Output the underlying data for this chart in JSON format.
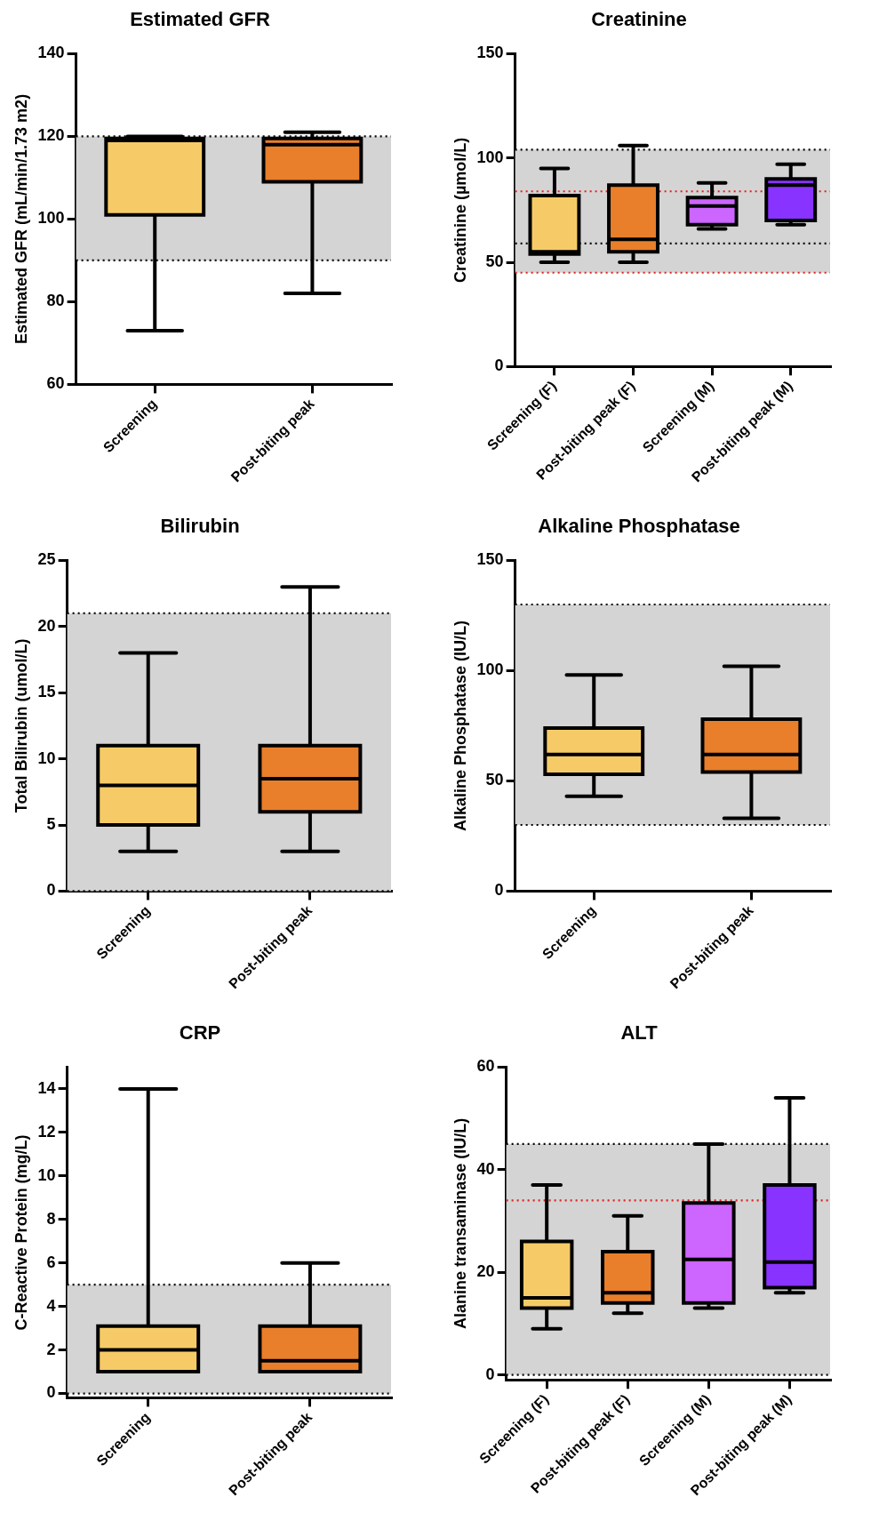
{
  "chart_data": [
    {
      "type": "box",
      "title": "Estimated GFR",
      "ylabel": "Estimated GFR (mL/min/1.73 m2)",
      "categories": [
        "Screening",
        "Post-biting peak"
      ],
      "colors": [
        "#f6cb67",
        "#e97f2a"
      ],
      "ylim": [
        60,
        140
      ],
      "yticks": [
        60,
        80,
        100,
        120,
        140
      ],
      "grid": false,
      "legend": false,
      "boxes": [
        {
          "low": 73,
          "q1": 101,
          "median": 119,
          "q3": 119.5,
          "high": 120
        },
        {
          "low": 82,
          "q1": 109,
          "median": 118,
          "q3": 119.5,
          "high": 121
        }
      ],
      "bands": [
        {
          "axis": "y",
          "from": 90,
          "to": 120,
          "color": "#d4d4d4"
        }
      ],
      "ref_lines": [
        {
          "axis": "y",
          "value": 120,
          "color": "#000000",
          "line_style": "dotted"
        },
        {
          "axis": "y",
          "value": 90,
          "color": "#000000",
          "line_style": "dotted"
        }
      ]
    },
    {
      "type": "box",
      "title": "Creatinine",
      "ylabel": "Creatinine (µmol/L)",
      "categories": [
        "Screening (F)",
        "Post-biting peak (F)",
        "Screening (M)",
        "Post-biting peak (M)"
      ],
      "colors": [
        "#f6cb67",
        "#e97f2a",
        "#cc66ff",
        "#8833ff"
      ],
      "ylim": [
        0,
        150
      ],
      "yticks": [
        0,
        50,
        100,
        150
      ],
      "grid": false,
      "legend": false,
      "boxes": [
        {
          "low": 50,
          "q1": 54,
          "median": 55,
          "q3": 82,
          "high": 95
        },
        {
          "low": 50,
          "q1": 55,
          "median": 61,
          "q3": 87,
          "high": 106
        },
        {
          "low": 66,
          "q1": 68,
          "median": 77,
          "q3": 81,
          "high": 88
        },
        {
          "low": 68,
          "q1": 70,
          "median": 87,
          "q3": 90,
          "high": 97
        }
      ],
      "bands": [
        {
          "axis": "y",
          "from": 45,
          "to": 104,
          "color": "#d4d4d4"
        }
      ],
      "ref_lines": [
        {
          "axis": "y",
          "value": 104,
          "color": "#000000",
          "line_style": "dotted"
        },
        {
          "axis": "y",
          "value": 59,
          "color": "#000000",
          "line_style": "dotted"
        },
        {
          "axis": "y",
          "value": 84,
          "color": "#e0201f",
          "line_style": "dotted"
        },
        {
          "axis": "y",
          "value": 45,
          "color": "#e0201f",
          "line_style": "dotted"
        }
      ]
    },
    {
      "type": "box",
      "title": "Bilirubin",
      "ylabel": "Total Bilirubin (umol/L)",
      "categories": [
        "Screening",
        "Post-biting peak"
      ],
      "colors": [
        "#f6cb67",
        "#e97f2a"
      ],
      "ylim": [
        0,
        25
      ],
      "yticks": [
        0,
        5,
        10,
        15,
        20,
        25
      ],
      "grid": false,
      "legend": false,
      "boxes": [
        {
          "low": 3,
          "q1": 5,
          "median": 8,
          "q3": 11,
          "high": 18
        },
        {
          "low": 3,
          "q1": 6,
          "median": 8.5,
          "q3": 11,
          "high": 23
        }
      ],
      "bands": [
        {
          "axis": "y",
          "from": 0,
          "to": 21,
          "color": "#d4d4d4"
        }
      ],
      "ref_lines": [
        {
          "axis": "y",
          "value": 21,
          "color": "#000000",
          "line_style": "dotted"
        },
        {
          "axis": "y",
          "value": 0,
          "color": "#000000",
          "line_style": "dotted"
        }
      ]
    },
    {
      "type": "box",
      "title": "Alkaline Phosphatase",
      "ylabel": "Alkaline Phosphatase (IU/L)",
      "categories": [
        "Screening",
        "Post-biting peak"
      ],
      "colors": [
        "#f6cb67",
        "#e97f2a"
      ],
      "ylim": [
        0,
        150
      ],
      "yticks": [
        0,
        50,
        100,
        150
      ],
      "grid": false,
      "legend": false,
      "boxes": [
        {
          "low": 43,
          "q1": 53,
          "median": 62,
          "q3": 74,
          "high": 98
        },
        {
          "low": 33,
          "q1": 54,
          "median": 62,
          "q3": 78,
          "high": 102
        }
      ],
      "bands": [
        {
          "axis": "y",
          "from": 30,
          "to": 130,
          "color": "#d4d4d4"
        }
      ],
      "ref_lines": [
        {
          "axis": "y",
          "value": 130,
          "color": "#000000",
          "line_style": "dotted"
        },
        {
          "axis": "y",
          "value": 30,
          "color": "#000000",
          "line_style": "dotted"
        }
      ]
    },
    {
      "type": "box",
      "title": "CRP",
      "ylabel": "C-Reactive Protein (mg/L)",
      "categories": [
        "Screening",
        "Post-biting peak"
      ],
      "colors": [
        "#f6cb67",
        "#e97f2a"
      ],
      "ylim": [
        -0.2,
        15
      ],
      "yticks": [
        0,
        2,
        4,
        6,
        8,
        10,
        12,
        14
      ],
      "grid": false,
      "legend": false,
      "boxes": [
        {
          "low": 1,
          "q1": 1,
          "median": 2,
          "q3": 3.1,
          "high": 14
        },
        {
          "low": 1,
          "q1": 1,
          "median": 1.5,
          "q3": 3.1,
          "high": 6
        }
      ],
      "bands": [
        {
          "axis": "y",
          "from": 0,
          "to": 5,
          "color": "#d4d4d4"
        }
      ],
      "ref_lines": [
        {
          "axis": "y",
          "value": 5,
          "color": "#000000",
          "line_style": "dotted"
        },
        {
          "axis": "y",
          "value": 0,
          "color": "#000000",
          "line_style": "dotted"
        }
      ]
    },
    {
      "type": "box",
      "title": "ALT",
      "ylabel": "Alanine transaminase (IU/L)",
      "categories": [
        "Screening (F)",
        "Post-biting peak (F)",
        "Screening (M)",
        "Post-biting peak (M)"
      ],
      "colors": [
        "#f6cb67",
        "#e97f2a",
        "#cc66ff",
        "#8833ff"
      ],
      "ylim": [
        -1,
        60
      ],
      "yticks": [
        0,
        20,
        40,
        60
      ],
      "grid": false,
      "legend": false,
      "boxes": [
        {
          "low": 9,
          "q1": 13,
          "median": 15,
          "q3": 26,
          "high": 37
        },
        {
          "low": 12,
          "q1": 14,
          "median": 16,
          "q3": 24,
          "high": 31
        },
        {
          "low": 13,
          "q1": 14,
          "median": 22.5,
          "q3": 33.5,
          "high": 45
        },
        {
          "low": 16,
          "q1": 17,
          "median": 22,
          "q3": 37,
          "high": 54
        }
      ],
      "bands": [
        {
          "axis": "y",
          "from": 0,
          "to": 45,
          "color": "#d4d4d4"
        }
      ],
      "ref_lines": [
        {
          "axis": "y",
          "value": 45,
          "color": "#000000",
          "line_style": "dotted"
        },
        {
          "axis": "y",
          "value": 0,
          "color": "#000000",
          "line_style": "dotted"
        },
        {
          "axis": "y",
          "value": 34,
          "color": "#e0201f",
          "line_style": "dotted"
        }
      ]
    }
  ]
}
